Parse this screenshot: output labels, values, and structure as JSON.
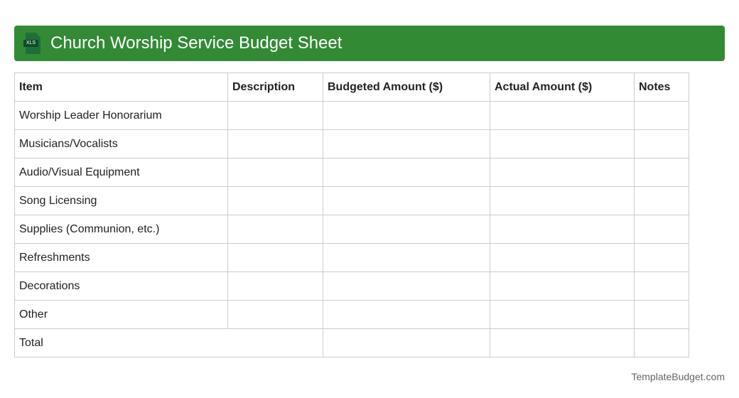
{
  "title": "Church Worship Service Budget Sheet",
  "icon": "xls-file-icon",
  "icon_label": "XLS",
  "columns": [
    "Item",
    "Description",
    "Budgeted Amount ($)",
    "Actual Amount ($)",
    "Notes"
  ],
  "rows": [
    "Worship Leader Honorarium",
    "Musicians/Vocalists",
    "Audio/Visual Equipment",
    "Song Licensing",
    "Supplies (Communion, etc.)",
    "Refreshments",
    "Decorations",
    "Other"
  ],
  "total_label": "Total",
  "footer": "TemplateBudget.com"
}
